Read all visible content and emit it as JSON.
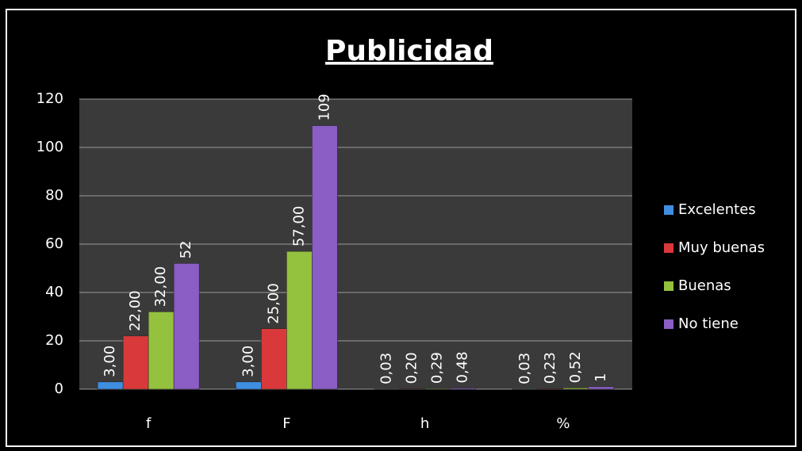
{
  "chart_data": {
    "type": "bar",
    "title": "Publicidad",
    "categories": [
      "f",
      "F",
      "h",
      "%"
    ],
    "series": [
      {
        "name": "Excelentes",
        "color": "#3f8ee0",
        "values": [
          3,
          3,
          0.03,
          0.03
        ],
        "value_labels": [
          "3,00",
          "3,00",
          "0,03",
          "0,03"
        ]
      },
      {
        "name": "Muy buenas",
        "color": "#d9393b",
        "values": [
          22,
          25,
          0.2,
          0.23
        ],
        "value_labels": [
          "22,00",
          "25,00",
          "0,20",
          "0,23"
        ]
      },
      {
        "name": "Buenas",
        "color": "#94c13e",
        "values": [
          32,
          57,
          0.29,
          0.52
        ],
        "value_labels": [
          "32,00",
          "57,00",
          "0,29",
          "0,52"
        ]
      },
      {
        "name": "No tiene",
        "color": "#8a5ec4",
        "values": [
          52,
          109,
          0.48,
          1
        ],
        "value_labels": [
          "52",
          "109",
          "0,48",
          "1"
        ]
      }
    ],
    "ylim": [
      0,
      120
    ],
    "yticks": [
      0,
      20,
      40,
      60,
      80,
      100,
      120
    ],
    "grid": true,
    "legend": "right"
  }
}
